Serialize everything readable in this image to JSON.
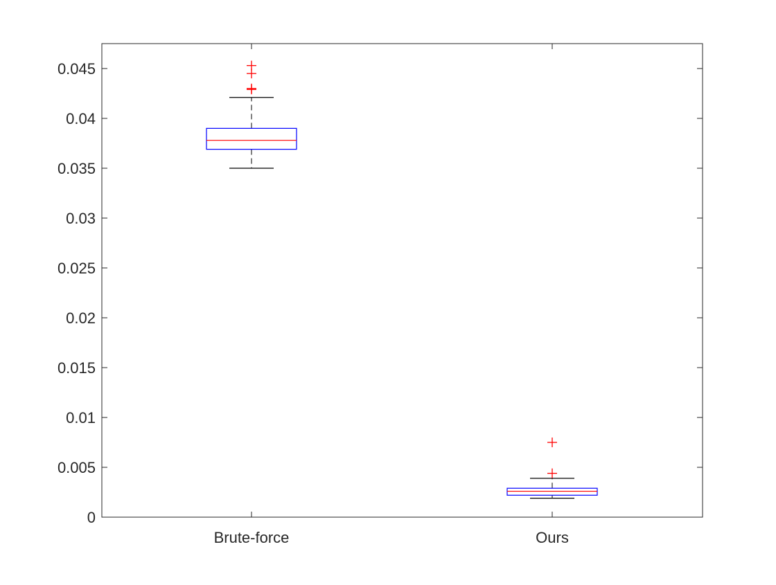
{
  "chart_data": {
    "type": "box",
    "title": "",
    "xlabel": "",
    "ylabel": "",
    "ylim": [
      0,
      0.0475
    ],
    "yticks": [
      0,
      0.005,
      0.01,
      0.015,
      0.02,
      0.025,
      0.03,
      0.035,
      0.04,
      0.045
    ],
    "ytick_labels": [
      "0",
      "0.005",
      "0.01",
      "0.015",
      "0.02",
      "0.025",
      "0.03",
      "0.035",
      "0.04",
      "0.045"
    ],
    "categories": [
      "Brute-force",
      "Ours"
    ],
    "boxes": [
      {
        "category": "Brute-force",
        "whisker_low": 0.035,
        "q1": 0.0369,
        "median": 0.0378,
        "q3": 0.039,
        "whisker_high": 0.0421,
        "outliers": [
          0.0429,
          0.043,
          0.0445,
          0.0453
        ]
      },
      {
        "category": "Ours",
        "whisker_low": 0.0019,
        "q1": 0.0022,
        "median": 0.0026,
        "q3": 0.0029,
        "whisker_high": 0.0039,
        "outliers": [
          0.0044,
          0.0075
        ]
      }
    ],
    "grid": false,
    "colors": {
      "box": "#0000ff",
      "median": "#ff0000",
      "whisker": "#000000",
      "outlier": "#ff0000",
      "axis": "#262626"
    }
  }
}
